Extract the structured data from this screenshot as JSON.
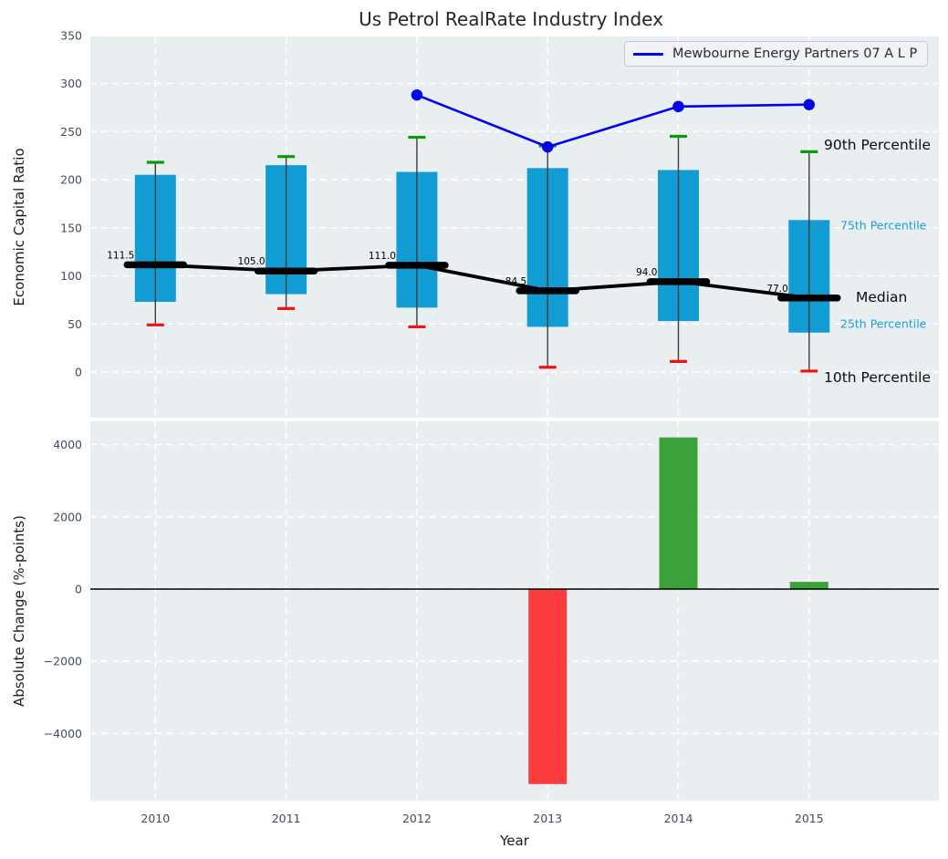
{
  "title": "Us Petrol RealRate Industry Index",
  "legend": {
    "label": "Mewbourne Energy Partners 07 A L P",
    "line_color": "#0000f0"
  },
  "colors": {
    "panel_background": "#e9eef0",
    "gridline": "#ffffff",
    "box_fill": "#119cd4",
    "whisker_line": "#3c3c3c",
    "cap_90th_green": "#0a9a0a",
    "cap_10th_red": "#f21212",
    "median_black": "#000000",
    "company_line_blue": "#0000f0",
    "bar_positive_green": "#3ba23b",
    "bar_negative_red": "#fb3d3d",
    "tick_label": "#3d4d63",
    "zero_line": "#000000"
  },
  "chart_data": [
    {
      "type": "box",
      "title": "Us Petrol RealRate Industry Index",
      "ylabel": "Economic Capital Ratio",
      "ylim": [
        -47,
        349
      ],
      "yticks": [
        0,
        50,
        100,
        150,
        200,
        250,
        300,
        350
      ],
      "categories": [
        "2010",
        "2011",
        "2012",
        "2013",
        "2014",
        "2015"
      ],
      "grid": true,
      "legend_position": "upper right",
      "series": [
        {
          "name": "10th Percentile",
          "values": [
            49,
            66,
            47,
            5,
            11,
            1
          ]
        },
        {
          "name": "25th Percentile",
          "values": [
            73,
            81,
            67,
            47,
            53,
            41
          ]
        },
        {
          "name": "Median",
          "values": [
            111.5,
            105.0,
            111.0,
            84.5,
            94.0,
            77.0
          ]
        },
        {
          "name": "75th Percentile",
          "values": [
            205,
            215,
            208,
            212,
            210,
            158
          ]
        },
        {
          "name": "90th Percentile",
          "values": [
            218,
            224,
            244,
            235,
            245,
            229
          ]
        }
      ],
      "median_labels": [
        "111.5",
        "105.0",
        "111.0",
        "84.5",
        "94.0",
        "77.0"
      ],
      "line_series": {
        "name": "Mewbourne Energy Partners 07 A L P",
        "x": [
          "2012",
          "2013",
          "2014",
          "2015"
        ],
        "y": [
          288,
          234,
          276,
          278
        ]
      },
      "annotations": [
        {
          "text": "90th Percentile"
        },
        {
          "text": "75th Percentile"
        },
        {
          "text": "Median"
        },
        {
          "text": "25th Percentile"
        },
        {
          "text": "10th Percentile"
        }
      ]
    },
    {
      "type": "bar",
      "ylabel": "Absolute Change (%-points)",
      "xlabel": "Year",
      "ylim": [
        -5900,
        4690
      ],
      "yticks": [
        -4000,
        -2000,
        0,
        2000,
        4000
      ],
      "categories": [
        "2010",
        "2011",
        "2012",
        "2013",
        "2014",
        "2015"
      ],
      "values": [
        null,
        null,
        null,
        -5400,
        4200,
        200
      ],
      "grid": true
    }
  ]
}
